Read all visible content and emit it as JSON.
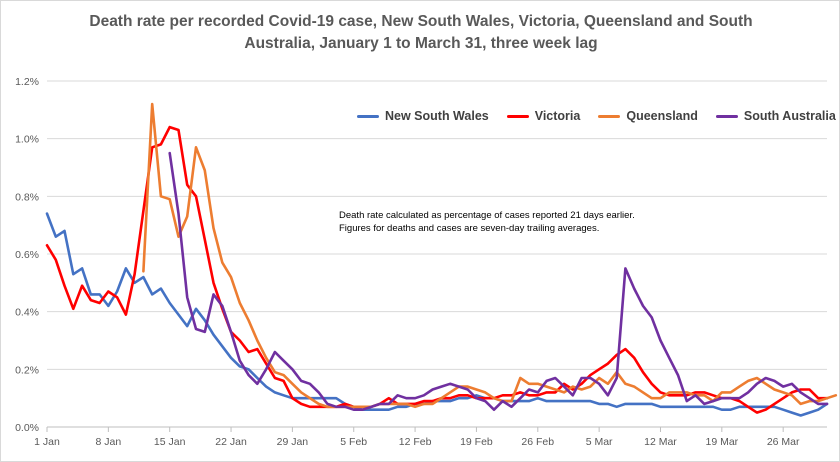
{
  "chart_data": {
    "type": "line",
    "title": "Death rate per recorded Covid-19 case, New South Wales, Victoria, Queensland and South Australia, January 1 to March 31, three week lag",
    "title_line1": "Death rate per recorded Covid-19 case, New South Wales, Victoria, Queensland and South",
    "title_line2": "Australia, January 1 to March 31, three week lag",
    "annotation": {
      "line1": "Death rate calculated as percentage of cases reported 21 days earlier.",
      "line2": "Figures for deaths and cases are seven-day trailing averages."
    },
    "xlabel": "",
    "ylabel": "",
    "x_ticks": [
      {
        "day": 1,
        "label": "1 Jan"
      },
      {
        "day": 8,
        "label": "8 Jan"
      },
      {
        "day": 15,
        "label": "15 Jan"
      },
      {
        "day": 22,
        "label": "22 Jan"
      },
      {
        "day": 29,
        "label": "29 Jan"
      },
      {
        "day": 36,
        "label": "5 Feb"
      },
      {
        "day": 43,
        "label": "12 Feb"
      },
      {
        "day": 50,
        "label": "19 Feb"
      },
      {
        "day": 57,
        "label": "26 Feb"
      },
      {
        "day": 64,
        "label": "5 Mar"
      },
      {
        "day": 71,
        "label": "12 Mar"
      },
      {
        "day": 78,
        "label": "19 Mar"
      },
      {
        "day": 85,
        "label": "26 Mar"
      }
    ],
    "xlim": [
      1,
      90
    ],
    "ylim": [
      0,
      1.2
    ],
    "y_ticks": [
      0,
      0.2,
      0.4,
      0.6,
      0.8,
      1.0,
      1.2
    ],
    "y_tick_labels": [
      "0.0%",
      "0.2%",
      "0.4%",
      "0.6%",
      "0.8%",
      "1.0%",
      "1.2%"
    ],
    "grid": "horizontal",
    "legend_position": "top-right",
    "series": [
      {
        "name": "New South Wales",
        "color": "#4472c4",
        "start_day": 1,
        "values": [
          0.74,
          0.66,
          0.68,
          0.53,
          0.55,
          0.46,
          0.46,
          0.42,
          0.47,
          0.55,
          0.5,
          0.52,
          0.46,
          0.48,
          0.43,
          0.39,
          0.35,
          0.41,
          0.37,
          0.32,
          0.28,
          0.24,
          0.21,
          0.2,
          0.17,
          0.14,
          0.12,
          0.11,
          0.1,
          0.1,
          0.1,
          0.1,
          0.1,
          0.1,
          0.08,
          0.07,
          0.06,
          0.06,
          0.06,
          0.06,
          0.07,
          0.07,
          0.08,
          0.08,
          0.09,
          0.09,
          0.09,
          0.1,
          0.1,
          0.11,
          0.1,
          0.1,
          0.09,
          0.09,
          0.09,
          0.09,
          0.1,
          0.09,
          0.09,
          0.09,
          0.09,
          0.09,
          0.09,
          0.08,
          0.08,
          0.07,
          0.08,
          0.08,
          0.08,
          0.08,
          0.07,
          0.07,
          0.07,
          0.07,
          0.07,
          0.07,
          0.07,
          0.06,
          0.06,
          0.07,
          0.07,
          0.07,
          0.07,
          0.07,
          0.06,
          0.05,
          0.04,
          0.05,
          0.06,
          0.08
        ]
      },
      {
        "name": "Victoria",
        "color": "#ff0000",
        "start_day": 1,
        "values": [
          0.63,
          0.58,
          0.49,
          0.41,
          0.49,
          0.44,
          0.43,
          0.47,
          0.45,
          0.39,
          0.53,
          0.75,
          0.97,
          0.98,
          1.04,
          1.03,
          0.84,
          0.8,
          0.65,
          0.5,
          0.41,
          0.33,
          0.3,
          0.26,
          0.27,
          0.22,
          0.17,
          0.16,
          0.1,
          0.08,
          0.07,
          0.07,
          0.07,
          0.07,
          0.08,
          0.07,
          0.07,
          0.07,
          0.08,
          0.1,
          0.08,
          0.08,
          0.08,
          0.09,
          0.09,
          0.1,
          0.1,
          0.11,
          0.11,
          0.1,
          0.1,
          0.1,
          0.11,
          0.11,
          0.12,
          0.11,
          0.11,
          0.12,
          0.12,
          0.15,
          0.13,
          0.15,
          0.18,
          0.2,
          0.22,
          0.25,
          0.27,
          0.24,
          0.19,
          0.15,
          0.12,
          0.11,
          0.11,
          0.11,
          0.12,
          0.12,
          0.11,
          0.1,
          0.1,
          0.09,
          0.07,
          0.05,
          0.06,
          0.08,
          0.1,
          0.12,
          0.13,
          0.13,
          0.1,
          0.1
        ]
      },
      {
        "name": "Queensland",
        "color": "#ed7d31",
        "start_day": 12,
        "values": [
          0.54,
          1.12,
          0.8,
          0.79,
          0.66,
          0.73,
          0.97,
          0.89,
          0.69,
          0.57,
          0.52,
          0.43,
          0.37,
          0.3,
          0.24,
          0.19,
          0.18,
          0.15,
          0.12,
          0.1,
          0.08,
          0.07,
          0.07,
          0.07,
          0.07,
          0.07,
          0.07,
          0.08,
          0.08,
          0.08,
          0.08,
          0.07,
          0.08,
          0.08,
          0.1,
          0.12,
          0.14,
          0.14,
          0.13,
          0.12,
          0.1,
          0.09,
          0.09,
          0.17,
          0.15,
          0.15,
          0.14,
          0.13,
          0.12,
          0.14,
          0.13,
          0.14,
          0.17,
          0.15,
          0.19,
          0.15,
          0.14,
          0.12,
          0.1,
          0.1,
          0.12,
          0.12,
          0.12,
          0.11,
          0.11,
          0.09,
          0.12,
          0.12,
          0.14,
          0.16,
          0.17,
          0.15,
          0.13,
          0.12,
          0.11,
          0.08,
          0.09,
          0.09,
          0.1,
          0.11
        ]
      },
      {
        "name": "South Australia",
        "color": "#7030a0",
        "start_day": 15,
        "values": [
          0.95,
          0.74,
          0.45,
          0.34,
          0.33,
          0.46,
          0.42,
          0.33,
          0.23,
          0.18,
          0.15,
          0.2,
          0.26,
          0.23,
          0.2,
          0.16,
          0.15,
          0.12,
          0.08,
          0.07,
          0.07,
          0.06,
          0.06,
          0.07,
          0.08,
          0.08,
          0.11,
          0.1,
          0.1,
          0.11,
          0.13,
          0.14,
          0.15,
          0.14,
          0.13,
          0.1,
          0.09,
          0.06,
          0.09,
          0.07,
          0.1,
          0.13,
          0.12,
          0.16,
          0.17,
          0.14,
          0.11,
          0.17,
          0.17,
          0.15,
          0.11,
          0.17,
          0.55,
          0.48,
          0.42,
          0.38,
          0.3,
          0.24,
          0.18,
          0.09,
          0.11,
          0.08,
          0.09,
          0.1,
          0.1,
          0.1,
          0.12,
          0.15,
          0.17,
          0.16,
          0.14,
          0.15,
          0.12,
          0.1,
          0.08,
          0.08
        ]
      }
    ]
  }
}
